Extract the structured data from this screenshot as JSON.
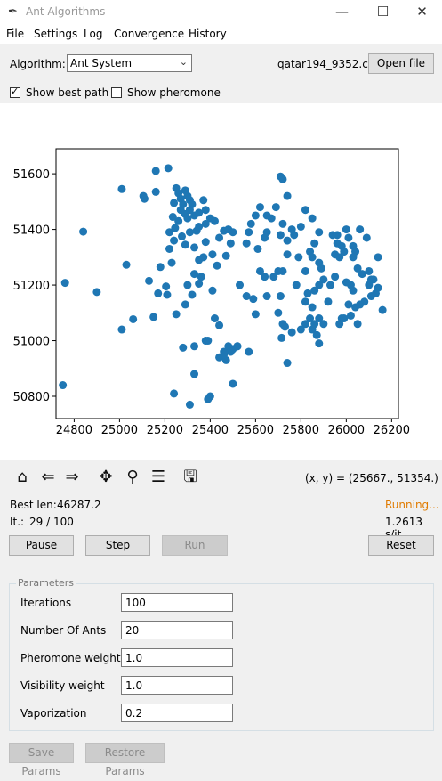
{
  "window": {
    "title": "Ant Algorithms",
    "minimize_glyph": "—",
    "maximize_glyph": "☐",
    "close_glyph": "✕"
  },
  "menu": [
    "File",
    "Settings",
    "Log",
    "Convergence",
    "History"
  ],
  "toolbar": {
    "algorithm_label": "Algorithm:",
    "algorithm_value": "Ant System",
    "file_name": "qatar194_9352.csv",
    "open_file_label": "Open file",
    "show_best_path_label": "Show best path",
    "show_best_path_checked": true,
    "show_pheromone_label": "Show pheromone",
    "show_pheromone_checked": false
  },
  "plot_nav": {
    "icons": [
      "home-icon",
      "back-icon",
      "forward-icon",
      "pan-icon",
      "zoom-icon",
      "configure-subplots-icon",
      "save-icon"
    ],
    "coords": "(x, y) = (25667., 51354.)"
  },
  "status": {
    "best_len_label": "Best len:",
    "best_len_value": "46287.2",
    "iteration_label": "It.:",
    "iteration_value": "29 / 100",
    "state": "Running...",
    "speed": "1.2613 s/it",
    "state_color": "#e07b00"
  },
  "controls": {
    "pause": "Pause",
    "step": "Step",
    "run": "Run",
    "reset": "Reset"
  },
  "parameters": {
    "group_label": "Parameters",
    "fields": [
      {
        "label": "Iterations",
        "value": "100"
      },
      {
        "label": "Number Of Ants",
        "value": "20"
      },
      {
        "label": "Pheromone weight",
        "value": "1.0"
      },
      {
        "label": "Visibility weight",
        "value": "1.0"
      },
      {
        "label": "Vaporization",
        "value": "0.2"
      }
    ],
    "save_label": "Save Params",
    "restore_label": "Restore Params"
  },
  "chart_data": {
    "type": "scatter",
    "color": "#1f77b4",
    "xlim": [
      24720,
      26230
    ],
    "ylim": [
      50720,
      51690
    ],
    "xticks": [
      "24800",
      "25000",
      "25200",
      "25400",
      "25600",
      "25800",
      "26000",
      "26200"
    ],
    "yticks": [
      "50800",
      "51000",
      "51200",
      "51400",
      "51600"
    ],
    "points": [
      [
        25215,
        51620
      ],
      [
        25160,
        51610
      ],
      [
        25010,
        51545
      ],
      [
        25105,
        51520
      ],
      [
        25110,
        51510
      ],
      [
        25160,
        51535
      ],
      [
        24840,
        51392
      ],
      [
        24760,
        51208
      ],
      [
        24900,
        51175
      ],
      [
        24750,
        50840
      ],
      [
        25030,
        51273
      ],
      [
        25060,
        51077
      ],
      [
        25010,
        51040
      ],
      [
        25130,
        51215
      ],
      [
        25180,
        51265
      ],
      [
        25150,
        51085
      ],
      [
        25170,
        51170
      ],
      [
        25220,
        51390
      ],
      [
        25240,
        51495
      ],
      [
        25250,
        51548
      ],
      [
        25260,
        51530
      ],
      [
        25270,
        51510
      ],
      [
        25280,
        51490
      ],
      [
        25290,
        51540
      ],
      [
        25300,
        51520
      ],
      [
        25310,
        51505
      ],
      [
        25270,
        51470
      ],
      [
        25290,
        51455
      ],
      [
        25310,
        51470
      ],
      [
        25320,
        51490
      ],
      [
        25330,
        51450
      ],
      [
        25350,
        51460
      ],
      [
        25370,
        51505
      ],
      [
        25380,
        51470
      ],
      [
        25300,
        51440
      ],
      [
        25260,
        51430
      ],
      [
        25235,
        51445
      ],
      [
        25245,
        51405
      ],
      [
        25275,
        51375
      ],
      [
        25290,
        51345
      ],
      [
        25310,
        51390
      ],
      [
        25340,
        51395
      ],
      [
        25350,
        51410
      ],
      [
        25380,
        51420
      ],
      [
        25400,
        51440
      ],
      [
        25420,
        51430
      ],
      [
        25440,
        51370
      ],
      [
        25460,
        51395
      ],
      [
        25480,
        51400
      ],
      [
        25500,
        51390
      ],
      [
        25490,
        51350
      ],
      [
        25470,
        51305
      ],
      [
        25430,
        51270
      ],
      [
        25410,
        51310
      ],
      [
        25370,
        51300
      ],
      [
        25350,
        51290
      ],
      [
        25360,
        51230
      ],
      [
        25330,
        51240
      ],
      [
        25300,
        51200
      ],
      [
        25230,
        51280
      ],
      [
        25240,
        51360
      ],
      [
        25220,
        51330
      ],
      [
        25380,
        51355
      ],
      [
        25330,
        51335
      ],
      [
        25350,
        51205
      ],
      [
        25410,
        51180
      ],
      [
        25320,
        51165
      ],
      [
        25290,
        51130
      ],
      [
        25250,
        51095
      ],
      [
        25205,
        51195
      ],
      [
        25210,
        51165
      ],
      [
        25420,
        51080
      ],
      [
        25440,
        51055
      ],
      [
        25460,
        50960
      ],
      [
        25480,
        50980
      ],
      [
        25500,
        50970
      ],
      [
        25520,
        50980
      ],
      [
        25440,
        50940
      ],
      [
        25470,
        50930
      ],
      [
        25490,
        50960
      ],
      [
        25570,
        50960
      ],
      [
        25560,
        51160
      ],
      [
        25530,
        51200
      ],
      [
        25590,
        51150
      ],
      [
        25600,
        51095
      ],
      [
        25620,
        51250
      ],
      [
        25640,
        51230
      ],
      [
        25610,
        51330
      ],
      [
        25640,
        51370
      ],
      [
        25560,
        51350
      ],
      [
        25570,
        51390
      ],
      [
        25580,
        51420
      ],
      [
        25620,
        51480
      ],
      [
        25650,
        51450
      ],
      [
        25670,
        51440
      ],
      [
        25690,
        51480
      ],
      [
        25710,
        51590
      ],
      [
        25720,
        51580
      ],
      [
        25740,
        51520
      ],
      [
        25720,
        51420
      ],
      [
        25760,
        51400
      ],
      [
        25740,
        51360
      ],
      [
        25770,
        51380
      ],
      [
        25800,
        51410
      ],
      [
        25820,
        51470
      ],
      [
        25850,
        51440
      ],
      [
        25880,
        51390
      ],
      [
        25860,
        51350
      ],
      [
        25840,
        51320
      ],
      [
        25850,
        51300
      ],
      [
        25880,
        51280
      ],
      [
        25890,
        51260
      ],
      [
        25900,
        51220
      ],
      [
        25880,
        51200
      ],
      [
        25860,
        51180
      ],
      [
        25830,
        51170
      ],
      [
        25820,
        51140
      ],
      [
        25850,
        51120
      ],
      [
        25840,
        51080
      ],
      [
        25820,
        51060
      ],
      [
        25850,
        51040
      ],
      [
        25860,
        51060
      ],
      [
        25880,
        51080
      ],
      [
        25900,
        51060
      ],
      [
        25870,
        51020
      ],
      [
        25800,
        51040
      ],
      [
        25760,
        51030
      ],
      [
        25720,
        51060
      ],
      [
        25700,
        51100
      ],
      [
        25710,
        51160
      ],
      [
        25720,
        51250
      ],
      [
        25680,
        51230
      ],
      [
        25650,
        51160
      ],
      [
        25730,
        51050
      ],
      [
        25715,
        51010
      ],
      [
        25880,
        50990
      ],
      [
        25930,
        51200
      ],
      [
        25950,
        51230
      ],
      [
        25950,
        51310
      ],
      [
        25960,
        51350
      ],
      [
        25940,
        51380
      ],
      [
        25960,
        51380
      ],
      [
        25980,
        51340
      ],
      [
        25990,
        51320
      ],
      [
        25970,
        51300
      ],
      [
        26000,
        51400
      ],
      [
        26010,
        51370
      ],
      [
        26030,
        51340
      ],
      [
        26040,
        51320
      ],
      [
        26030,
        51300
      ],
      [
        26050,
        51260
      ],
      [
        26070,
        51240
      ],
      [
        26100,
        51250
      ],
      [
        26110,
        51220
      ],
      [
        26120,
        51220
      ],
      [
        26140,
        51300
      ],
      [
        26130,
        51170
      ],
      [
        26110,
        51160
      ],
      [
        26100,
        51200
      ],
      [
        26080,
        51140
      ],
      [
        26060,
        51130
      ],
      [
        26040,
        51120
      ],
      [
        26030,
        51180
      ],
      [
        26020,
        51200
      ],
      [
        26000,
        51210
      ],
      [
        26050,
        51060
      ],
      [
        26020,
        51090
      ],
      [
        25980,
        51080
      ],
      [
        25970,
        51060
      ],
      [
        25990,
        51080
      ],
      [
        26010,
        51130
      ],
      [
        26060,
        51400
      ],
      [
        26090,
        51370
      ],
      [
        26140,
        51190
      ],
      [
        26160,
        51110
      ],
      [
        25600,
        51450
      ],
      [
        25650,
        51390
      ],
      [
        25700,
        51250
      ],
      [
        25710,
        51380
      ],
      [
        25740,
        51310
      ],
      [
        25780,
        51200
      ],
      [
        25790,
        51300
      ],
      [
        25820,
        51250
      ],
      [
        25920,
        51140
      ],
      [
        25740,
        50920
      ],
      [
        25390,
        51000
      ],
      [
        25380,
        51000
      ],
      [
        25330,
        50980
      ],
      [
        25280,
        50975
      ],
      [
        25400,
        50800
      ],
      [
        25390,
        50790
      ],
      [
        25500,
        50845
      ],
      [
        25240,
        50810
      ],
      [
        25310,
        50770
      ],
      [
        25330,
        50880
      ],
      [
        25460,
        50950
      ],
      [
        25520,
        50980
      ]
    ]
  }
}
